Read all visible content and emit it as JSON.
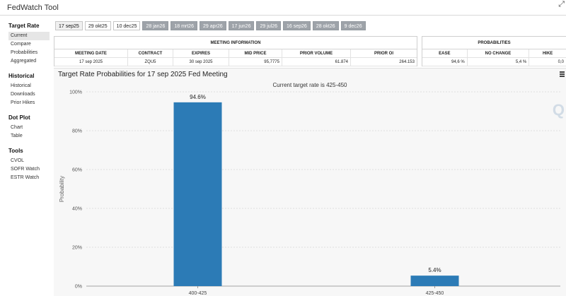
{
  "app": {
    "title": "FedWatch Tool"
  },
  "sidebar": {
    "sections": [
      {
        "title": "Target Rate",
        "items": [
          "Current",
          "Compare",
          "Probabilities",
          "Aggregated"
        ]
      },
      {
        "title": "Historical",
        "items": [
          "Historical",
          "Downloads",
          "Prior Hikes"
        ]
      },
      {
        "title": "Dot Plot",
        "items": [
          "Chart",
          "Table"
        ]
      },
      {
        "title": "Tools",
        "items": [
          "CVOL",
          "SOFR Watch",
          "ESTR Watch"
        ]
      }
    ]
  },
  "tabs": [
    "17 sep25",
    "29 okt25",
    "10 dec25",
    "28 jan26",
    "18 mrt26",
    "29 apr26",
    "17 jun26",
    "29 jul26",
    "16 sep26",
    "28 okt26",
    "9 dec26"
  ],
  "meeting_info": {
    "heading": "MEETING INFORMATION",
    "columns": [
      "MEETING DATE",
      "CONTRACT",
      "EXPIRES",
      "MID PRICE",
      "PRIOR VOLUME",
      "PRIOR OI"
    ],
    "row": [
      "17 sep 2025",
      "ZQU5",
      "30 sep 2025",
      "95,7775",
      "61.874",
      "264.153"
    ]
  },
  "probabilities": {
    "heading": "PROBABILITIES",
    "columns": [
      "EASE",
      "NO CHANGE",
      "HIKE"
    ],
    "row": [
      "94,6 %",
      "5,4 %",
      "0,0"
    ]
  },
  "chart": {
    "title": "Target Rate Probabilities for 17 sep 2025 Fed Meeting",
    "subtitle": "Current target rate is 425-450",
    "watermark": "Q"
  },
  "colors": {
    "bar": "#2c7bb6",
    "tab_gray": "#9ea3a9"
  },
  "chart_data": {
    "type": "bar",
    "categories": [
      "400-425",
      "425-450"
    ],
    "values": [
      94.6,
      5.4
    ],
    "data_labels": [
      "94.6%",
      "5.4%"
    ],
    "ylabel": "Probability",
    "ylim": [
      0,
      100
    ],
    "yticks": [
      0,
      20,
      40,
      60,
      80,
      100
    ],
    "ytick_labels": [
      "0%",
      "20%",
      "40%",
      "60%",
      "80%",
      "100%"
    ],
    "grid": true
  }
}
